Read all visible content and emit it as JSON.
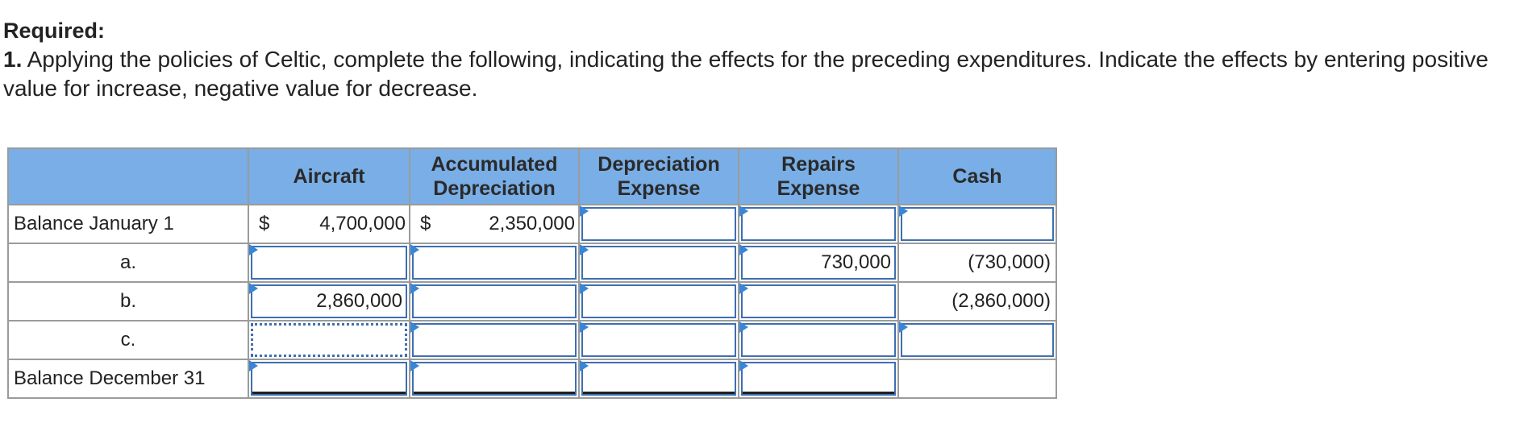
{
  "heading": "Required:",
  "instructions": {
    "number": "1.",
    "text": " Applying the policies of Celtic, complete the following, indicating the effects for the preceding expenditures. Indicate the effects by entering positive value for increase, negative value for decrease."
  },
  "table": {
    "columns": [
      {
        "label": ""
      },
      {
        "label": "Aircraft"
      },
      {
        "label": "Accumulated Depreciation"
      },
      {
        "label": "Depreciation Expense"
      },
      {
        "label": "Repairs Expense"
      },
      {
        "label": "Cash"
      }
    ],
    "rows": [
      {
        "label": "Balance January 1",
        "aircraft_currency": "$",
        "aircraft": "4,700,000",
        "accum_currency": "$",
        "accum": "2,350,000",
        "dep_expense": "",
        "repairs": "",
        "cash": ""
      },
      {
        "label": "a.",
        "aircraft": "",
        "accum": "",
        "dep_expense": "",
        "repairs": "730,000",
        "cash": "(730,000)"
      },
      {
        "label": "b.",
        "aircraft": "2,860,000",
        "accum": "",
        "dep_expense": "",
        "repairs": "",
        "cash": "(2,860,000)"
      },
      {
        "label": "c.",
        "aircraft": "",
        "accum": "",
        "dep_expense": "",
        "repairs": "",
        "cash": ""
      },
      {
        "label": "Balance December 31",
        "aircraft": "",
        "accum": "",
        "dep_expense": "",
        "repairs": ""
      }
    ]
  },
  "colors": {
    "header_bg": "#79aee6",
    "input_border": "#3d6fb1",
    "marker": "#3a86d6"
  }
}
